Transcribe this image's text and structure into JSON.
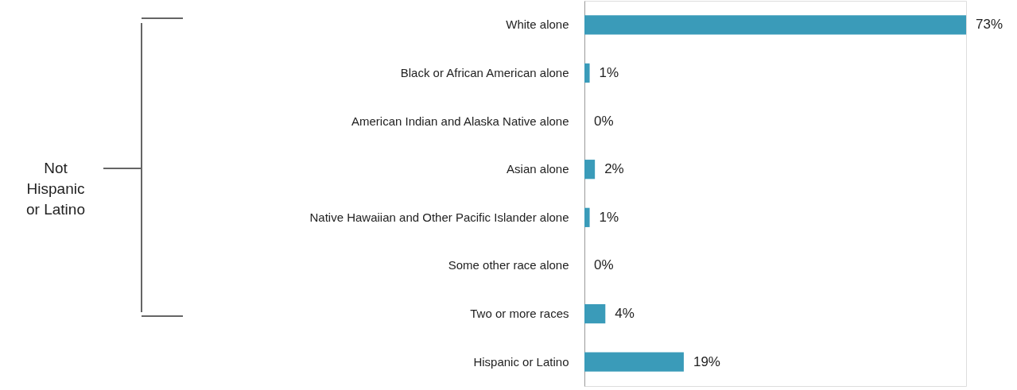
{
  "chart_data": {
    "type": "bar",
    "orientation": "horizontal",
    "categories": [
      "White alone",
      "Black or African American alone",
      "American Indian and Alaska Native alone",
      "Asian alone",
      "Native Hawaiian and Other Pacific Islander alone",
      "Some other race alone",
      "Two or more races",
      "Hispanic or Latino"
    ],
    "values": [
      73,
      1,
      0,
      2,
      1,
      0,
      4,
      19
    ],
    "value_labels": [
      "73%",
      "1%",
      "0%",
      "2%",
      "1%",
      "0%",
      "4%",
      "19%"
    ],
    "color": "#3a9bb9",
    "annotations": [
      "Not\nHispanic\nor Latino"
    ]
  }
}
